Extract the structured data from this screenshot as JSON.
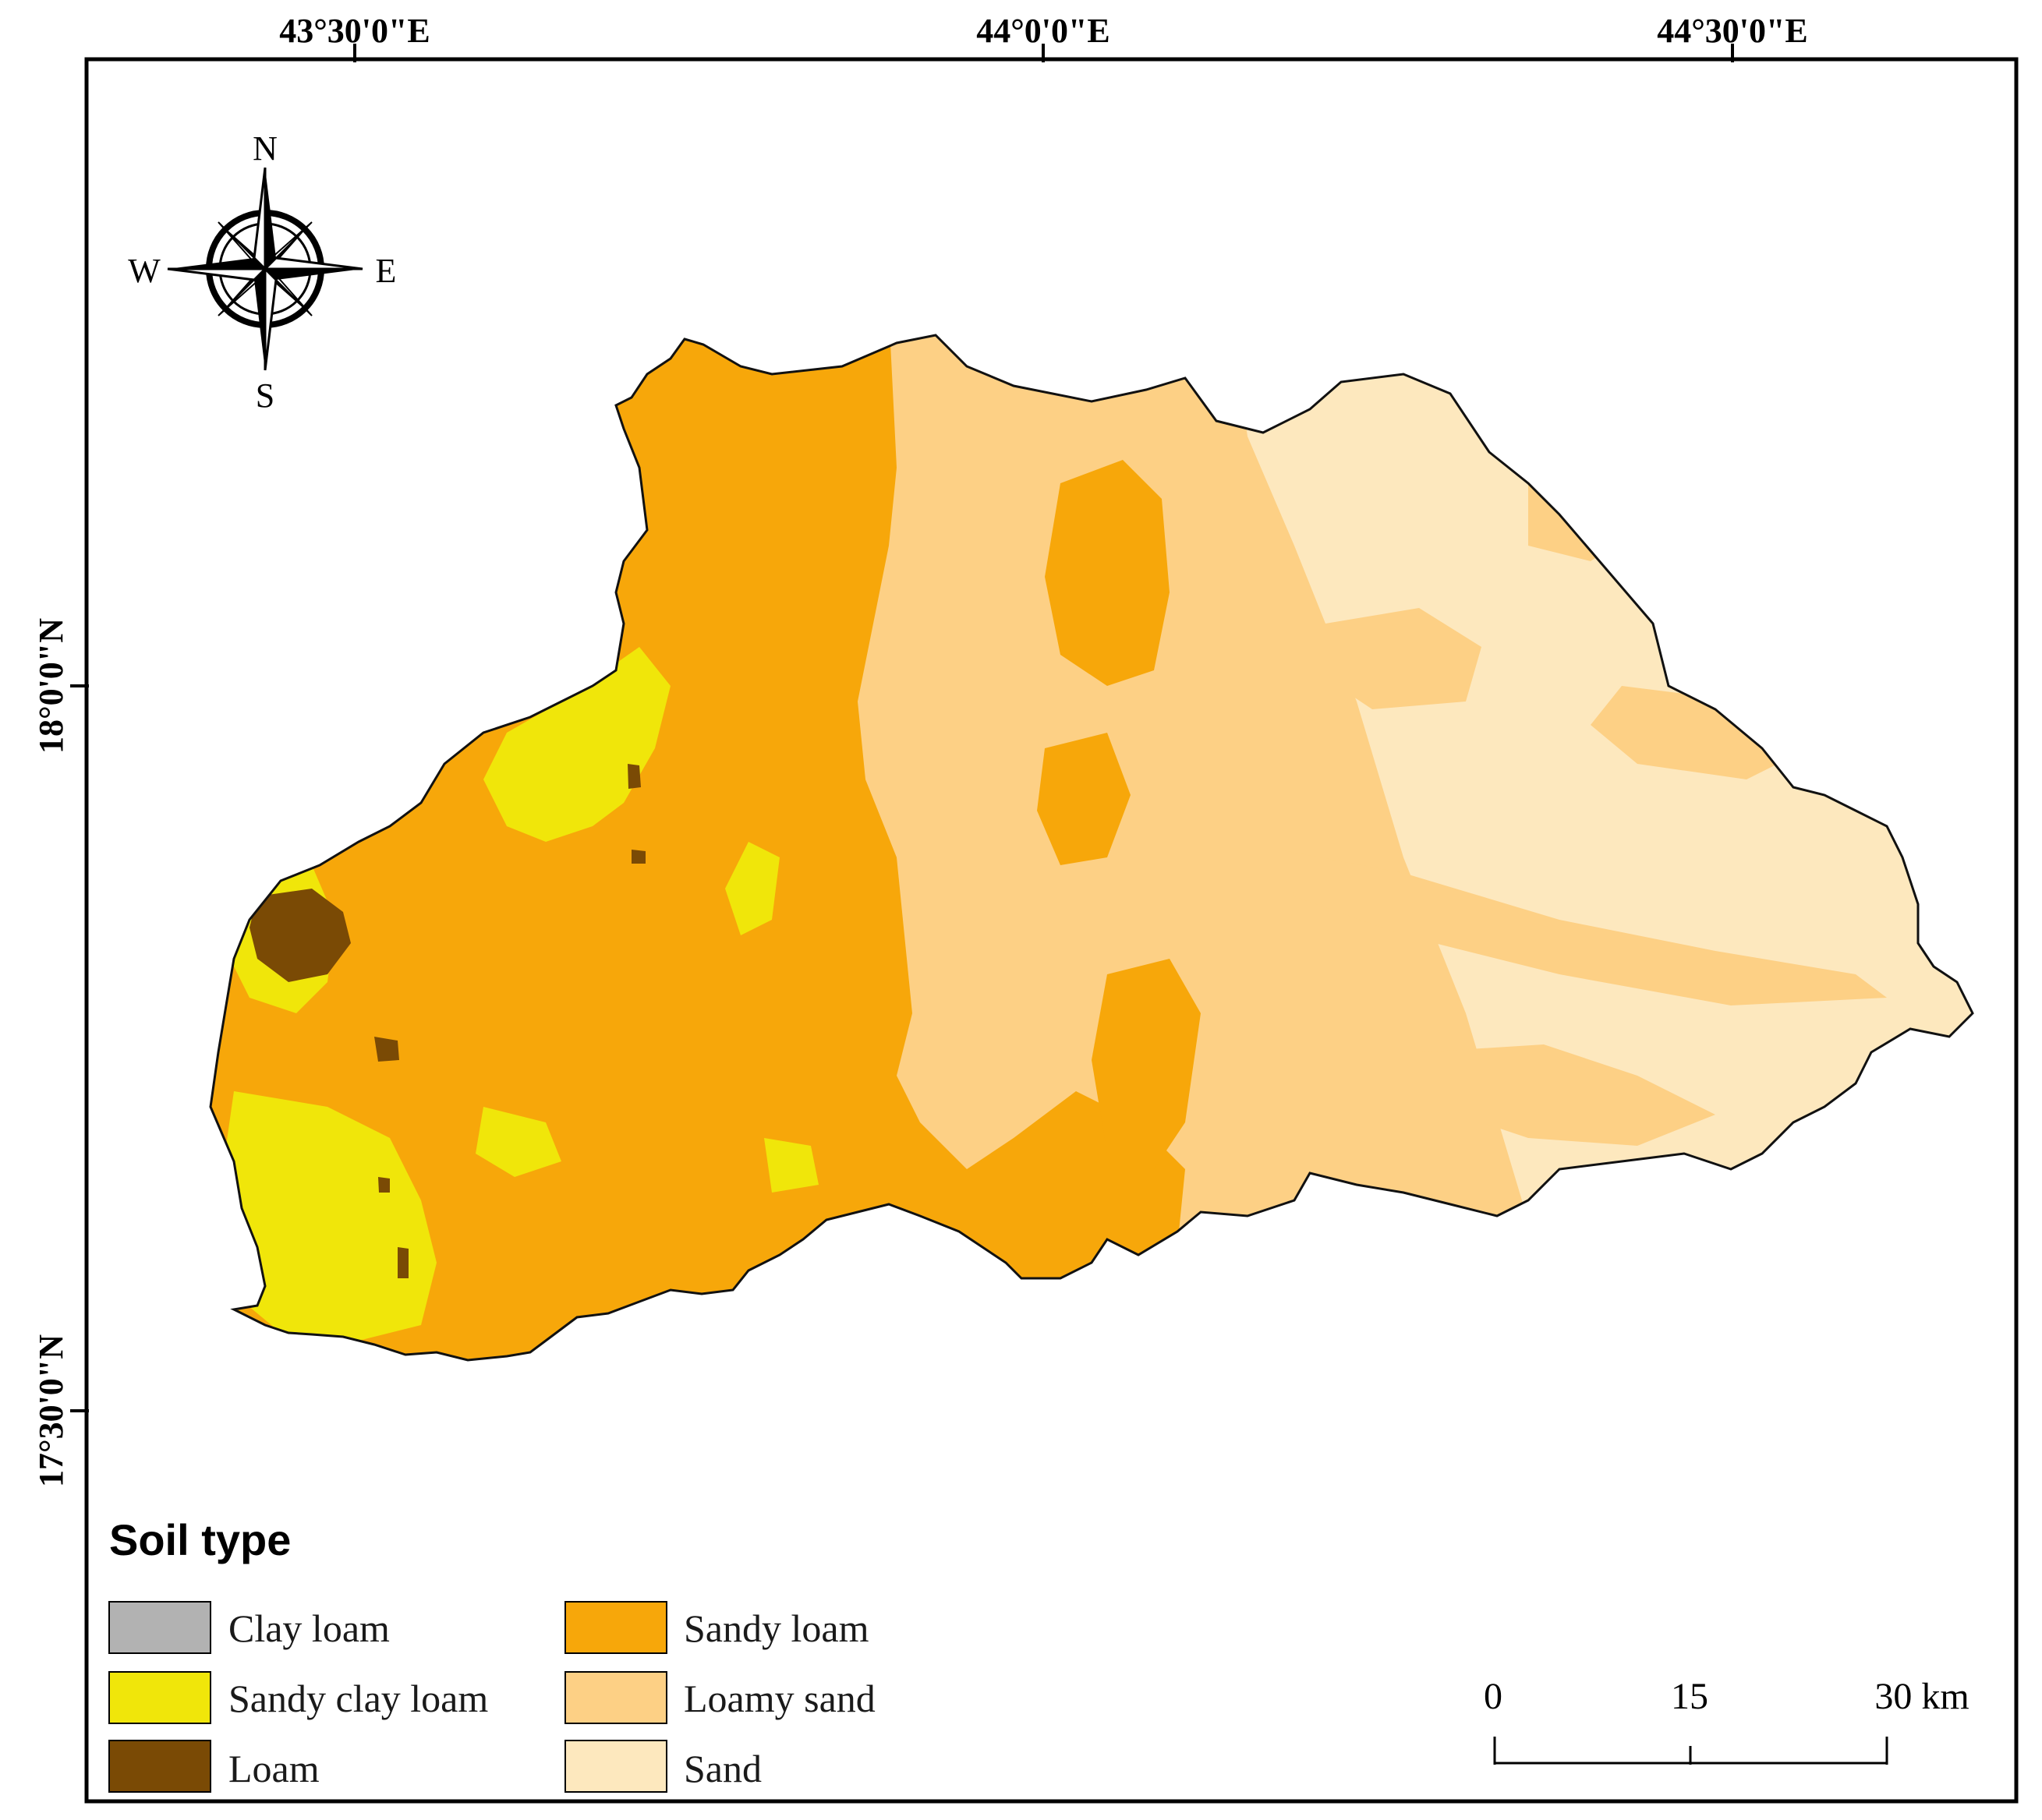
{
  "graticule": {
    "lon_labels": [
      "43°30'0\"E",
      "44°0'0\"E",
      "44°30'0\"E"
    ],
    "lat_labels": [
      "18°0'0\"N",
      "17°30'0\"N"
    ]
  },
  "compass": {
    "n": "N",
    "s": "S",
    "e": "E",
    "w": "W"
  },
  "legend": {
    "title": "Soil type",
    "items": [
      {
        "label": "Clay loam",
        "color": "#b2b2b2"
      },
      {
        "label": "Sandy clay loam",
        "color": "#f0e60a"
      },
      {
        "label": "Loam",
        "color": "#7a4a05"
      },
      {
        "label": "Sandy loam",
        "color": "#f7a70a"
      },
      {
        "label": "Loamy sand",
        "color": "#fdd085"
      },
      {
        "label": "Sand",
        "color": "#fde8be"
      }
    ]
  },
  "scale_bar": {
    "labels": [
      "0",
      "15",
      "30 km"
    ]
  }
}
